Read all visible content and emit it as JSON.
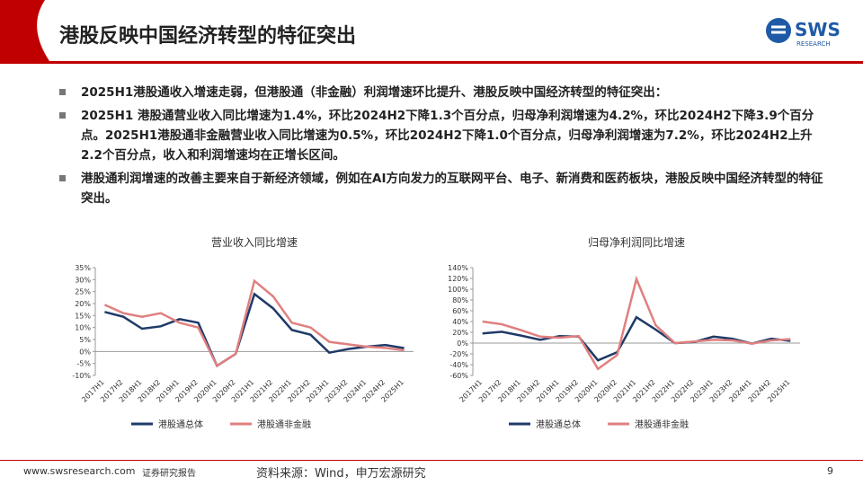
{
  "header": {
    "title": "港股反映中国经济转型的特征突出",
    "logo": "SWS",
    "logo_sub": "RESEARCH"
  },
  "bullets": [
    "2025H1港股通收入增速走弱，但港股通（非金融）利润增速环比提升、港股反映中国经济转型的特征突出：",
    "2025H1 港股通营业收入同比增速为1.4%，环比2024H2下降1.3个百分点，归母净利润增速为4.2%，环比2024H2下降3.9个百分点。2025H1港股通非金融营业收入同比增速为0.5%，环比2024H2下降1.0个百分点，归母净利润增速为7.2%，环比2024H2上升2.2个百分点，收入和利润增速均在正增长区间。",
    "港股通利润增速的改善主要来自于新经济领域，例如在AI方向发力的互联网平台、电子、新消费和医药板块，港股反映中国经济转型的特征突出。"
  ],
  "chart_data": [
    {
      "type": "line",
      "title": "营业收入同比增速",
      "categories": [
        "2017H1",
        "2017H2",
        "2018H1",
        "2018H2",
        "2019H1",
        "2019H2",
        "2020H1",
        "2020H2",
        "2021H1",
        "2021H2",
        "2022H1",
        "2022H2",
        "2023H1",
        "2023H2",
        "2024H1",
        "2024H2",
        "2025H1"
      ],
      "series": [
        {
          "name": "港股通总体",
          "color": "#1f3a68",
          "values": [
            16.5,
            14.5,
            9.5,
            10.5,
            13.5,
            12,
            -6,
            -1,
            24,
            18,
            9,
            7,
            -0.5,
            1,
            2,
            2.7,
            1.4
          ]
        },
        {
          "name": "港股通非金融",
          "color": "#e08080",
          "values": [
            19.5,
            16,
            14.5,
            16,
            12,
            10,
            -6,
            -1,
            29.5,
            23,
            12,
            10,
            4,
            3,
            2,
            1.5,
            0.5
          ]
        }
      ],
      "ylim": [
        -10,
        35
      ],
      "yticks": [
        {
          "value": -10,
          "label": "-10%"
        },
        {
          "value": -5,
          "label": "-5%"
        },
        {
          "value": 0,
          "label": "0%"
        },
        {
          "value": 5,
          "label": "5%"
        },
        {
          "value": 10,
          "label": "10%"
        },
        {
          "value": 15,
          "label": "15%"
        },
        {
          "value": 20,
          "label": "20%"
        },
        {
          "value": 25,
          "label": "25%"
        },
        {
          "value": 30,
          "label": "30%"
        },
        {
          "value": 35,
          "label": "35%"
        }
      ],
      "legend": "bottom"
    },
    {
      "type": "line",
      "title": "归母净利润同比增速",
      "categories": [
        "2017H1",
        "2017H2",
        "2018H1",
        "2018H2",
        "2019H1",
        "2019H2",
        "2020H1",
        "2020H2",
        "2021H1",
        "2021H2",
        "2022H1",
        "2022H2",
        "2023H1",
        "2023H2",
        "2024H1",
        "2024H2",
        "2025H1"
      ],
      "series": [
        {
          "name": "港股通总体",
          "color": "#1f3a68",
          "values": [
            18,
            21,
            14,
            6,
            13,
            12,
            -32,
            -17,
            48,
            25,
            0,
            2,
            12,
            8,
            -1,
            8.1,
            4.2
          ]
        },
        {
          "name": "港股通非金融",
          "color": "#e08080",
          "values": [
            40,
            35,
            24,
            12,
            10,
            13,
            -48,
            -22,
            119,
            33,
            0,
            3,
            6,
            5,
            -1,
            5,
            7.2
          ]
        }
      ],
      "ylim": [
        -60,
        140
      ],
      "yticks": [
        {
          "value": -60,
          "label": "-60%"
        },
        {
          "value": -40,
          "label": "-40%"
        },
        {
          "value": -20,
          "label": "-20%"
        },
        {
          "value": 0,
          "label": "0%"
        },
        {
          "value": 20,
          "label": "20%"
        },
        {
          "value": 40,
          "label": "40%"
        },
        {
          "value": 60,
          "label": "60%"
        },
        {
          "value": 80,
          "label": "80%"
        },
        {
          "value": 100,
          "label": "100%"
        },
        {
          "value": 120,
          "label": "120%"
        },
        {
          "value": 140,
          "label": "140%"
        }
      ],
      "legend": "bottom"
    }
  ],
  "footer": {
    "site": "www.swsresearch.com",
    "kind": "证券研究报告",
    "source": "资料来源：Wind，申万宏源研究",
    "page": "9"
  }
}
